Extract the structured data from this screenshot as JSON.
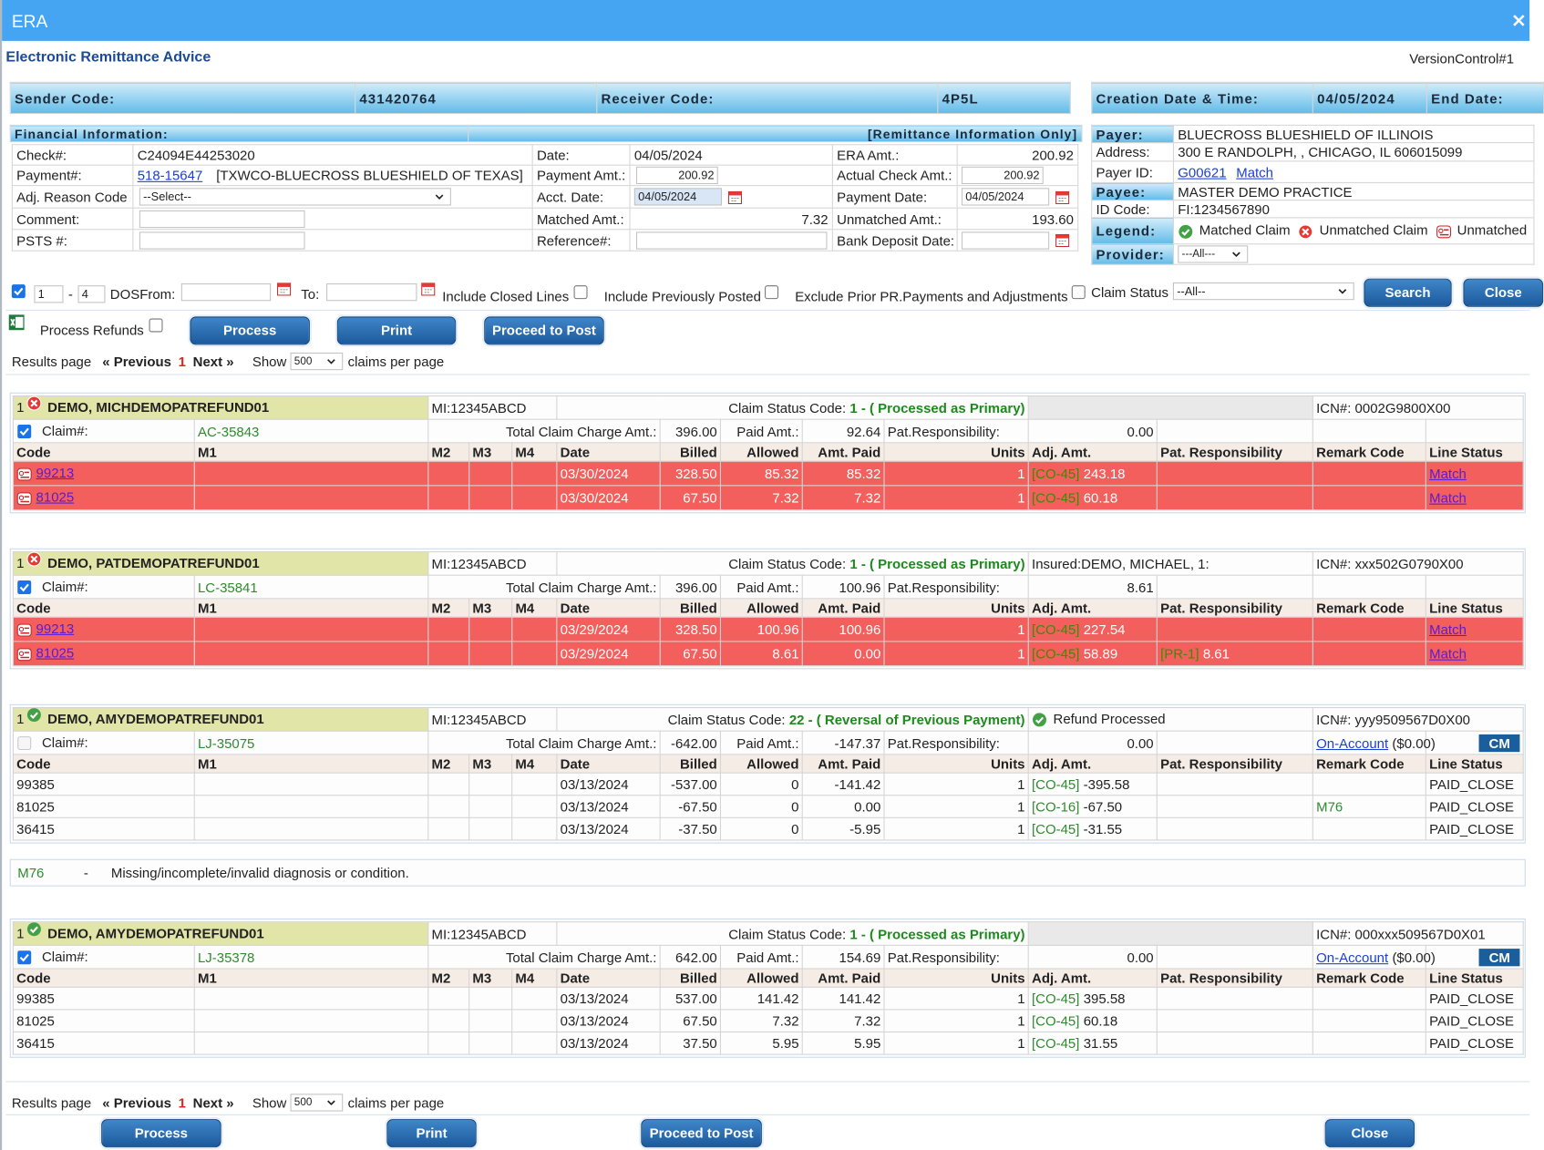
{
  "window": {
    "title": "ERA"
  },
  "header": {
    "title": "Electronic Remittance Advice",
    "version": "VersionControl#1"
  },
  "sender": {
    "sender_code_label": "Sender Code:",
    "sender_code": "431420764",
    "receiver_code_label": "Receiver Code:",
    "receiver_code": "4P5L",
    "creation_label": "Creation Date & Time:",
    "creation": "04/05/2024",
    "end_date_label": "End Date:"
  },
  "financial": {
    "header": "Financial Information:",
    "header_right": "[Remittance Information Only]",
    "check_label": "Check#:",
    "check": "C24094E44253020",
    "payment_label": "Payment#:",
    "payment": "518-15647",
    "payment_note": "[TXWCO-BLUECROSS BLUESHIELD OF TEXAS]",
    "adj_label": "Adj. Reason Code",
    "adj": "--Select--",
    "comment_label": "Comment:",
    "psts_label": "PSTS #:",
    "date_label": "Date:",
    "date": "04/05/2024",
    "payment_amt_label": "Payment Amt.:",
    "payment_amt": "200.92",
    "acct_date_label": "Acct. Date:",
    "acct_date": "04/05/2024",
    "matched_label": "Matched Amt.:",
    "matched": "7.32",
    "reference_label": "Reference#:",
    "era_amt_label": "ERA Amt.:",
    "era_amt": "200.92",
    "actual_check_label": "Actual Check Amt.:",
    "actual_check": "200.92",
    "payment_date_label": "Payment Date:",
    "payment_date": "04/05/2024",
    "unmatched_label": "Unmatched Amt.:",
    "unmatched": "193.60",
    "bank_label": "Bank Deposit Date:"
  },
  "payer": {
    "payer_label": "Payer:",
    "payer": "BLUECROSS BLUESHIELD OF ILLINOIS",
    "address_label": "Address:",
    "address": "300 E RANDOLPH, , CHICAGO, IL   606015099",
    "payer_id_label": "Payer ID:",
    "payer_id": "G00621",
    "match": "Match",
    "payee_label": "Payee:",
    "payee": "MASTER DEMO PRACTICE",
    "id_code_label": "ID Code:",
    "id_code": "FI:1234567890",
    "legend_label": "Legend:",
    "legend": [
      "Matched Claim",
      "Unmatched Claim",
      "Unmatched"
    ],
    "provider_label": "Provider:",
    "provider": "---All---"
  },
  "filters": {
    "checked": true,
    "from": "1",
    "range_sep": "-",
    "to": "4",
    "dos_from": "DOSFrom:",
    "to_label": "To:",
    "include_closed": "Include Closed Lines",
    "include_prev": "Include Previously Posted",
    "exclude_prior": "Exclude Prior PR.Payments and Adjustments",
    "claim_status_label": "Claim Status",
    "claim_status": "--All--",
    "search": "Search",
    "close": "Close"
  },
  "actions": {
    "process_refunds": "Process Refunds",
    "process": "Process",
    "print": "Print",
    "proceed": "Proceed to Post",
    "close": "Close"
  },
  "pager": {
    "results": "Results page",
    "prev": "« Previous",
    "page": "1",
    "next": "Next »",
    "show": "Show",
    "per_page": "500",
    "claims_per_page": "claims per page"
  },
  "claim_labels": {
    "claim": "Claim#:",
    "csc": "Claim Status Code:",
    "tcc": "Total Claim Charge Amt.:",
    "paid": "Paid Amt.:",
    "pat": "Pat.Responsibility:",
    "columns": [
      "Code",
      "M1",
      "M2",
      "M3",
      "M4",
      "Date",
      "Billed",
      "Allowed",
      "Amt. Paid",
      "Units",
      "Adj. Amt.",
      "Pat. Responsibility",
      "Remark Code",
      "Line Status"
    ]
  },
  "claims": [
    {
      "num": "1",
      "status": "unmatched",
      "checked": true,
      "name": "DEMO, MICHDEMOPATREFUND01",
      "mi": "MI:12345ABCD",
      "csc": "1 - ( Processed as Primary)",
      "icn": "ICN#: 0002G9800X00",
      "claim": "AC-35843",
      "tcc": "396.00",
      "paid": "92.64",
      "pat": "0.00",
      "lines": [
        {
          "code": "99213",
          "date": "03/30/2024",
          "billed": "328.50",
          "allowed": "85.32",
          "amt_paid": "85.32",
          "units": "1",
          "adj_code": "[CO-45]",
          "adj_amt": "243.18",
          "status": "Match"
        },
        {
          "code": "81025",
          "date": "03/30/2024",
          "billed": "67.50",
          "allowed": "7.32",
          "amt_paid": "7.32",
          "units": "1",
          "adj_code": "[CO-45]",
          "adj_amt": "60.18",
          "status": "Match"
        }
      ]
    },
    {
      "num": "1",
      "status": "unmatched",
      "checked": true,
      "name": "DEMO, PATDEMOPATREFUND01",
      "mi": "MI:12345ABCD",
      "csc": "1 - ( Processed as Primary)",
      "extra": "Insured:DEMO, MICHAEL, 1:",
      "icn": "ICN#: xxx502G0790X00",
      "claim": "LC-35841",
      "tcc": "396.00",
      "paid": "100.96",
      "pat": "8.61",
      "lines": [
        {
          "code": "99213",
          "date": "03/29/2024",
          "billed": "328.50",
          "allowed": "100.96",
          "amt_paid": "100.96",
          "units": "1",
          "adj_code": "[CO-45]",
          "adj_amt": "227.54",
          "status": "Match"
        },
        {
          "code": "81025",
          "date": "03/29/2024",
          "billed": "67.50",
          "allowed": "8.61",
          "amt_paid": "0.00",
          "units": "1",
          "adj_code": "[CO-45]",
          "adj_amt": "58.89",
          "pat_code": "[PR-1]",
          "pat_amt": "8.61",
          "status": "Match"
        }
      ]
    },
    {
      "num": "1",
      "status": "matched",
      "checked": false,
      "name": "DEMO, AMYDEMOPATREFUND01",
      "mi": "MI:12345ABCD",
      "csc": "22 - ( Reversal of Previous Payment)",
      "refund": "Refund Processed",
      "icn": "ICN#: yyy9509567D0X00",
      "claim": "LJ-35075",
      "tcc": "-642.00",
      "paid": "-147.37",
      "pat": "0.00",
      "on_account": "On-Account",
      "on_account_amt": "($0.00)",
      "cm": "CM",
      "lines": [
        {
          "code": "99385",
          "date": "03/13/2024",
          "billed": "-537.00",
          "allowed": "0",
          "amt_paid": "-141.42",
          "units": "1",
          "adj_code": "[CO-45]",
          "adj_amt": "-395.58",
          "status": "PAID_CLOSE"
        },
        {
          "code": "81025",
          "date": "03/13/2024",
          "billed": "-67.50",
          "allowed": "0",
          "amt_paid": "0.00",
          "units": "1",
          "adj_code": "[CO-16]",
          "adj_amt": "-67.50",
          "remark": "M76",
          "status": "PAID_CLOSE"
        },
        {
          "code": "36415",
          "date": "03/13/2024",
          "billed": "-37.50",
          "allowed": "0",
          "amt_paid": "-5.95",
          "units": "1",
          "adj_code": "[CO-45]",
          "adj_amt": "-31.55",
          "status": "PAID_CLOSE"
        }
      ],
      "remark_notes": [
        {
          "code": "M76",
          "sep": "-",
          "text": "Missing/incomplete/invalid diagnosis or condition."
        }
      ]
    },
    {
      "num": "1",
      "status": "matched",
      "checked": true,
      "name": "DEMO, AMYDEMOPATREFUND01",
      "mi": "MI:12345ABCD",
      "csc": "1 - ( Processed as Primary)",
      "icn": "ICN#: 000xxx509567D0X01",
      "claim": "LJ-35378",
      "tcc": "642.00",
      "paid": "154.69",
      "pat": "0.00",
      "on_account": "On-Account",
      "on_account_amt": "($0.00)",
      "cm": "CM",
      "lines": [
        {
          "code": "99385",
          "date": "03/13/2024",
          "billed": "537.00",
          "allowed": "141.42",
          "amt_paid": "141.42",
          "units": "1",
          "adj_code": "[CO-45]",
          "adj_amt": "395.58",
          "status": "PAID_CLOSE"
        },
        {
          "code": "81025",
          "date": "03/13/2024",
          "billed": "67.50",
          "allowed": "7.32",
          "amt_paid": "7.32",
          "units": "1",
          "adj_code": "[CO-45]",
          "adj_amt": "60.18",
          "status": "PAID_CLOSE"
        },
        {
          "code": "36415",
          "date": "03/13/2024",
          "billed": "37.50",
          "allowed": "5.95",
          "amt_paid": "5.95",
          "units": "1",
          "adj_code": "[CO-45]",
          "adj_amt": "31.55",
          "status": "PAID_CLOSE"
        }
      ]
    }
  ]
}
